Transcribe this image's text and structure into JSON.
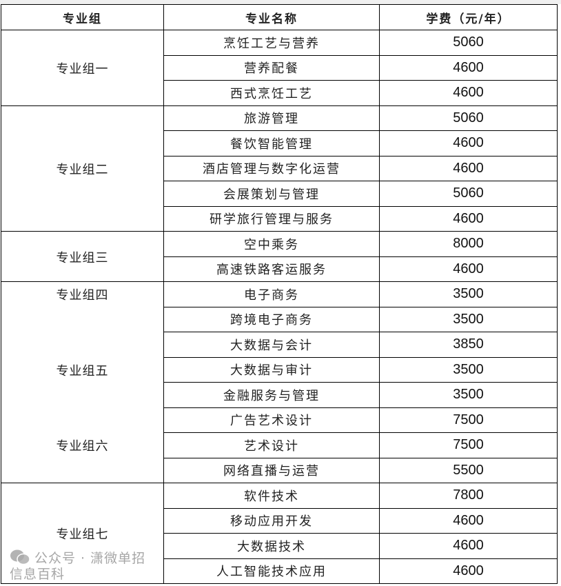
{
  "headers": [
    "专业组",
    "专业名称",
    "学费（元/年）"
  ],
  "groups": [
    {
      "labels": [
        "专业组一"
      ],
      "majors": [
        [
          "烹饪工艺与营养",
          "5060"
        ],
        [
          "营养配餐",
          "4600"
        ],
        [
          "西式烹饪工艺",
          "4600"
        ]
      ]
    },
    {
      "labels": [
        "专业组二"
      ],
      "majors": [
        [
          "旅游管理",
          "5060"
        ],
        [
          "餐饮智能管理",
          "4600"
        ],
        [
          "酒店管理与数字化运营",
          "4600"
        ],
        [
          "会展策划与管理",
          "5060"
        ],
        [
          "研学旅行管理与服务",
          "4600"
        ]
      ]
    },
    {
      "labels": [
        "专业组三"
      ],
      "majors": [
        [
          "空中乘务",
          "8000"
        ],
        [
          "高速铁路客运服务",
          "4600"
        ]
      ]
    },
    {
      "labels": [
        "专业组四",
        "专业组五",
        "专业组六"
      ],
      "majors": [
        [
          "电子商务",
          "3500"
        ],
        [
          "跨境电子商务",
          "3500"
        ],
        [
          "大数据与会计",
          "3850"
        ],
        [
          "大数据与审计",
          "3500"
        ],
        [
          "金融服务与管理",
          "3500"
        ],
        [
          "广告艺术设计",
          "7500"
        ],
        [
          "艺术设计",
          "7500"
        ],
        [
          "网络直播与运营",
          "5500"
        ]
      ]
    },
    {
      "labels": [
        "专业组七"
      ],
      "majors": [
        [
          "软件技术",
          "7800"
        ],
        [
          "移动应用开发",
          "4600"
        ],
        [
          "大数据技术",
          "4600"
        ],
        [
          "人工智能技术应用",
          "4600"
        ]
      ]
    }
  ],
  "watermark": {
    "icon": "wechat-icon",
    "text": "公众号 · 潇微单招信息百科"
  }
}
